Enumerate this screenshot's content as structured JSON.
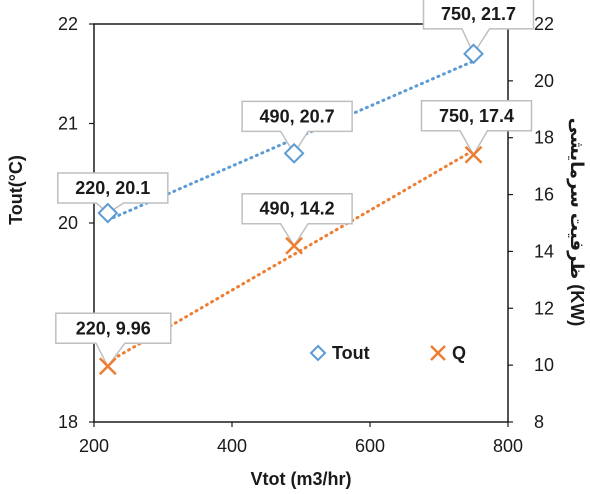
{
  "chart_data": {
    "type": "scatter",
    "xlabel": "Vtot (m3/hr)",
    "xlim": [
      200,
      800
    ],
    "x_ticks": [
      "200",
      "400",
      "600",
      "800"
    ],
    "y_left": {
      "label": "Tout(°C)",
      "lim": [
        18,
        22
      ],
      "ticks": [
        "18",
        "19",
        "20",
        "21",
        "22"
      ]
    },
    "y_right": {
      "label": "ظرفیت سرمایشی (KW)",
      "lim": [
        8,
        22
      ],
      "ticks": [
        "8",
        "10",
        "12",
        "14",
        "16",
        "18",
        "20",
        "22"
      ]
    },
    "legend_position": "inside-bottom-right",
    "series": [
      {
        "name": "Tout",
        "axis": "left",
        "marker": "diamond",
        "color": "#5B9BD5",
        "trendline": "dotted",
        "x": [
          220,
          490,
          750
        ],
        "y": [
          20.1,
          20.7,
          21.7
        ],
        "labels": [
          "220, 20.1",
          "490, 20.7",
          "750, 21.7"
        ]
      },
      {
        "name": "Q",
        "axis": "right",
        "marker": "x",
        "color": "#ED7D31",
        "trendline": "dotted",
        "x": [
          220,
          490,
          750
        ],
        "y": [
          9.96,
          14.2,
          17.4
        ],
        "labels": [
          "220, 9.96",
          "490, 14.2",
          "750, 17.4"
        ]
      }
    ]
  }
}
